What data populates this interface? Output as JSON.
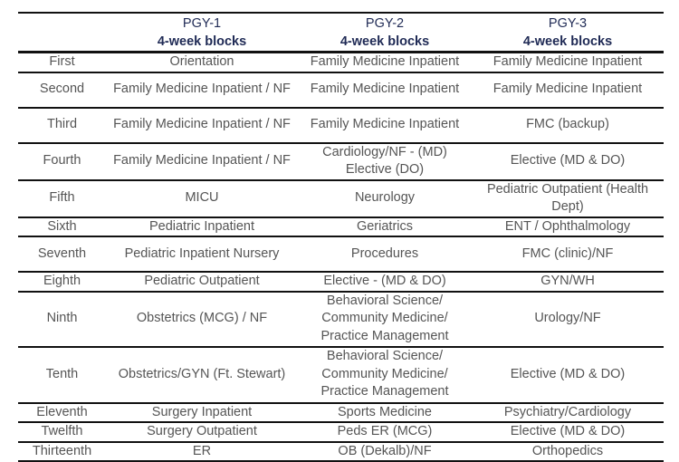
{
  "columns": [
    {
      "title": "",
      "subtitle": ""
    },
    {
      "title": "PGY-1",
      "subtitle": "4-week blocks"
    },
    {
      "title": "PGY-2",
      "subtitle": "4-week blocks"
    },
    {
      "title": "PGY-3",
      "subtitle": "4-week blocks"
    }
  ],
  "rows": [
    {
      "block": "First",
      "pgy1": "Orientation",
      "pgy2": "Family Medicine Inpatient",
      "pgy3": "Family Medicine Inpatient"
    },
    {
      "block": "Second",
      "pgy1": "Family Medicine Inpatient / NF",
      "pgy2": "Family Medicine Inpatient",
      "pgy3": "Family Medicine Inpatient"
    },
    {
      "block": "Third",
      "pgy1": "Family Medicine Inpatient / NF",
      "pgy2": "Family Medicine Inpatient",
      "pgy3": "FMC (backup)"
    },
    {
      "block": "Fourth",
      "pgy1": "Family Medicine Inpatient / NF",
      "pgy2": "Cardiology/NF - (MD) Elective (DO)",
      "pgy3": "Elective (MD & DO)"
    },
    {
      "block": "Fifth",
      "pgy1": "MICU",
      "pgy2": "Neurology",
      "pgy3": "Pediatric Outpatient (Health Dept)"
    },
    {
      "block": "Sixth",
      "pgy1": "Pediatric Inpatient",
      "pgy2": "Geriatrics",
      "pgy3": "ENT / Ophthalmology"
    },
    {
      "block": "Seventh",
      "pgy1": "Pediatric Inpatient Nursery",
      "pgy2": "Procedures",
      "pgy3": "FMC (clinic)/NF"
    },
    {
      "block": "Eighth",
      "pgy1": "Pediatric Outpatient",
      "pgy2": "Elective - (MD & DO)",
      "pgy3": "GYN/WH"
    },
    {
      "block": "Ninth",
      "pgy1": "Obstetrics (MCG) / NF",
      "pgy2": "Behavioral Science/ Community Medicine/ Practice Management",
      "pgy3": "Urology/NF"
    },
    {
      "block": "Tenth",
      "pgy1": "Obstetrics/GYN (Ft. Stewart)",
      "pgy2": "Behavioral Science/ Community Medicine/ Practice Management",
      "pgy3": "Elective (MD & DO)"
    },
    {
      "block": "Eleventh",
      "pgy1": "Surgery Inpatient",
      "pgy2": "Sports Medicine",
      "pgy3": "Psychiatry/Cardiology"
    },
    {
      "block": "Twelfth",
      "pgy1": "Surgery Outpatient",
      "pgy2": "Peds ER (MCG)",
      "pgy3": "Elective (MD & DO)"
    },
    {
      "block": "Thirteenth",
      "pgy1": "ER",
      "pgy2": "OB (Dekalb)/NF",
      "pgy3": "Orthopedics"
    }
  ]
}
